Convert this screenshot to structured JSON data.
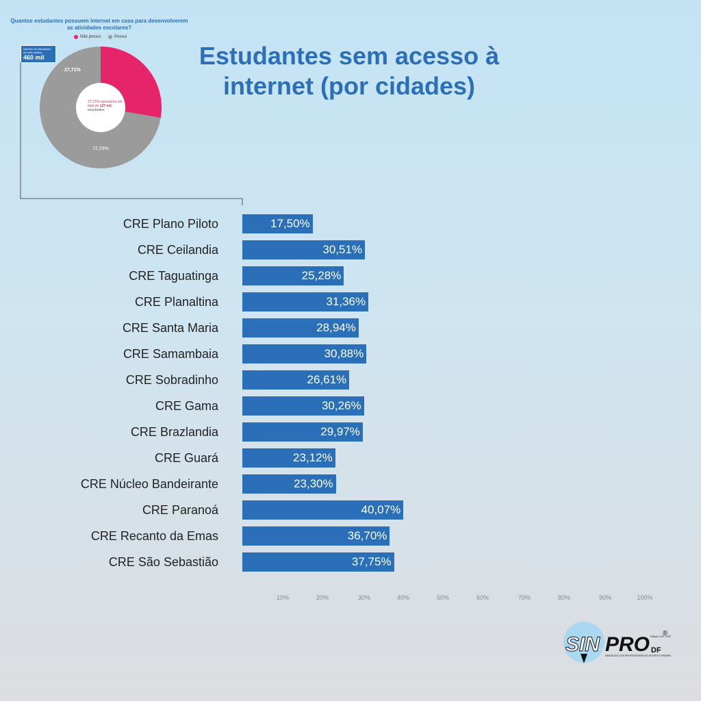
{
  "title": "Estudantes sem acesso à internet (por cidades)",
  "donut": {
    "question": "Quantos estudantes possuem internet em casa para desenvolverem as atividades escolares?",
    "legend": [
      {
        "label": "Não possui",
        "color": "#e5246a"
      },
      {
        "label": "Possui",
        "color": "#9b9b9b"
      }
    ],
    "slices": [
      {
        "label": "Não possui",
        "value": 27.71,
        "text": "27,71%",
        "color": "#e5246a"
      },
      {
        "label": "Possui",
        "value": 72.29,
        "text": "72,29%",
        "color": "#9b9b9b"
      }
    ],
    "info_label": "Número de estudantes da rede pública",
    "info_value": "460 mil",
    "center_note_pre": "27,71% representa um total de",
    "center_note_highlight": "127 mil",
    "center_note_post": "estudantes"
  },
  "chart_data": {
    "type": "bar",
    "orientation": "horizontal",
    "title": "Estudantes sem acesso à internet (por cidades)",
    "categories": [
      "CRE Plano Piloto",
      "CRE Ceilandia",
      "CRE Taguatinga",
      "CRE Planaltina",
      "CRE Santa Maria",
      "CRE Samambaia",
      "CRE Sobradinho",
      "CRE Gama",
      "CRE Brazlandia",
      "CRE Guará",
      "CRE Núcleo Bandeirante",
      "CRE Paranoá",
      "CRE Recanto da Emas",
      "CRE São Sebastião"
    ],
    "values": [
      17.5,
      30.51,
      25.28,
      31.36,
      28.94,
      30.88,
      26.61,
      30.26,
      29.97,
      23.12,
      23.3,
      40.07,
      36.7,
      37.75
    ],
    "value_labels": [
      "17,50%",
      "30,51%",
      "25,28%",
      "31,36%",
      "28,94%",
      "30,88%",
      "26,61%",
      "30,26%",
      "29,97%",
      "23,12%",
      "23,30%",
      "40,07%",
      "36,70%",
      "37,75%"
    ],
    "xlim": [
      0,
      100
    ],
    "xticks": [
      "10%",
      "20%",
      "30%",
      "40%",
      "50%",
      "60%",
      "70%",
      "80%",
      "90%",
      "100%"
    ],
    "bar_color": "#2a6fb8"
  },
  "logo": {
    "brand_a": "SIN",
    "brand_b": "PRO",
    "suffix": "DF",
    "tagline": "SINDICATO DOS PROFESSORES NO DISTRITO FEDERAL",
    "registered": "®",
    "founded": "Filiado CUT CNTE"
  }
}
